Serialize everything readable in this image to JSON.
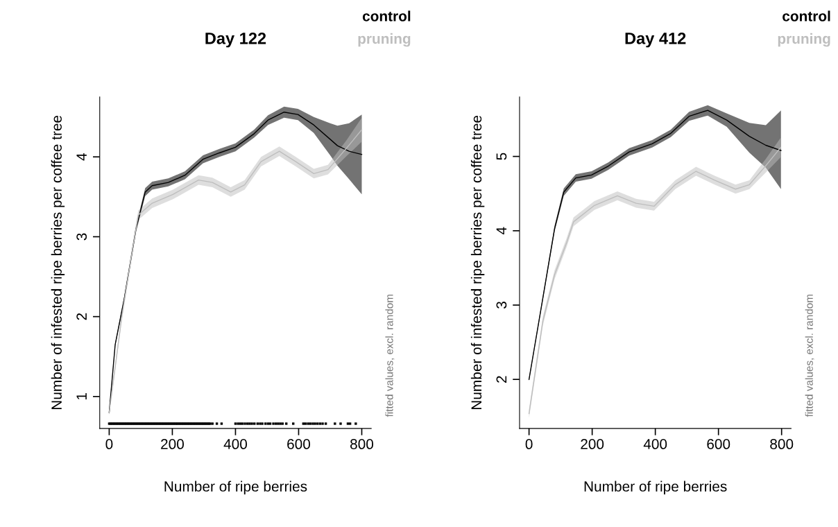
{
  "chart_data": [
    {
      "type": "line",
      "title": "Day 122",
      "xlabel": "Number of ripe berries",
      "ylabel": "Number of infested ripe berries per coffee tree",
      "annotations": [
        "fitted values, excl. random"
      ],
      "legend": "top right",
      "xlim": [
        -30,
        830
      ],
      "xticks": [
        0,
        200,
        400,
        600,
        800
      ],
      "ylim": [
        0.6,
        4.75
      ],
      "yticks": [
        1,
        2,
        3,
        4
      ],
      "grid": false,
      "series": [
        {
          "name": "control",
          "color": "#000000",
          "x": [
            0,
            19,
            48,
            85,
            114,
            136,
            187,
            240,
            297,
            349,
            400,
            459,
            503,
            554,
            598,
            648,
            700,
            723,
            760,
            800
          ],
          "values": [
            0.8,
            1.65,
            2.23,
            3.1,
            3.56,
            3.64,
            3.68,
            3.77,
            3.97,
            4.05,
            4.12,
            4.29,
            4.46,
            4.56,
            4.53,
            4.4,
            4.22,
            4.14,
            4.07,
            4.03
          ],
          "lower": [
            0.78,
            1.63,
            2.2,
            3.06,
            3.51,
            3.59,
            3.63,
            3.72,
            3.92,
            4.0,
            4.07,
            4.24,
            4.4,
            4.49,
            4.46,
            4.3,
            4.02,
            3.89,
            3.72,
            3.53
          ],
          "upper": [
            0.82,
            1.67,
            2.26,
            3.14,
            3.61,
            3.69,
            3.73,
            3.82,
            4.02,
            4.1,
            4.17,
            4.34,
            4.52,
            4.63,
            4.6,
            4.5,
            4.42,
            4.39,
            4.42,
            4.53
          ]
        },
        {
          "name": "pruning",
          "color": "#bebebe",
          "x": [
            0,
            40,
            70,
            92,
            136,
            202,
            283,
            327,
            385,
            429,
            481,
            539,
            591,
            648,
            693,
            752,
            800
          ],
          "values": [
            0.8,
            2.0,
            2.75,
            3.27,
            3.42,
            3.53,
            3.71,
            3.68,
            3.56,
            3.65,
            3.94,
            4.07,
            3.94,
            3.79,
            3.84,
            4.11,
            4.34
          ],
          "lower": [
            0.76,
            1.95,
            2.69,
            3.21,
            3.36,
            3.47,
            3.65,
            3.62,
            3.5,
            3.59,
            3.88,
            4.01,
            3.88,
            3.73,
            3.78,
            4.01,
            4.19
          ],
          "upper": [
            0.84,
            2.05,
            2.81,
            3.33,
            3.48,
            3.59,
            3.77,
            3.74,
            3.62,
            3.71,
            4.0,
            4.13,
            4.0,
            3.85,
            3.9,
            4.21,
            4.49
          ]
        },
        {
          "type": "scatter",
          "color": "#000000",
          "x": [
            0,
            4,
            8,
            12,
            16,
            20,
            24,
            28,
            32,
            36,
            40,
            44,
            48,
            52,
            56,
            60,
            64,
            68,
            72,
            76,
            80,
            84,
            88,
            92,
            96,
            100,
            104,
            108,
            112,
            116,
            120,
            124,
            128,
            132,
            136,
            140,
            144,
            148,
            152,
            156,
            160,
            164,
            168,
            172,
            176,
            180,
            184,
            188,
            192,
            196,
            200,
            204,
            208,
            212,
            216,
            220,
            224,
            228,
            232,
            236,
            240,
            244,
            248,
            252,
            256,
            260,
            264,
            268,
            272,
            276,
            280,
            284,
            288,
            292,
            296,
            300,
            304,
            308,
            312,
            316,
            320,
            327,
            341,
            356,
            400,
            408,
            415,
            422,
            430,
            438,
            445,
            452,
            460,
            470,
            478,
            485,
            495,
            503,
            510,
            520,
            528,
            535,
            542,
            549,
            561,
            583,
            615,
            622,
            630,
            637,
            645,
            652,
            660,
            668,
            676,
            686,
            715,
            733,
            756,
            763,
            781
          ],
          "values": [
            0.66,
            0.66,
            0.66,
            0.66,
            0.66,
            0.66,
            0.66,
            0.66,
            0.66,
            0.66,
            0.66,
            0.66,
            0.66,
            0.66,
            0.66,
            0.66,
            0.66,
            0.66,
            0.66,
            0.66,
            0.66,
            0.66,
            0.66,
            0.66,
            0.66,
            0.66,
            0.66,
            0.66,
            0.66,
            0.66,
            0.66,
            0.66,
            0.66,
            0.66,
            0.66,
            0.66,
            0.66,
            0.66,
            0.66,
            0.66,
            0.66,
            0.66,
            0.66,
            0.66,
            0.66,
            0.66,
            0.66,
            0.66,
            0.66,
            0.66,
            0.66,
            0.66,
            0.66,
            0.66,
            0.66,
            0.66,
            0.66,
            0.66,
            0.66,
            0.66,
            0.66,
            0.66,
            0.66,
            0.66,
            0.66,
            0.66,
            0.66,
            0.66,
            0.66,
            0.66,
            0.66,
            0.66,
            0.66,
            0.66,
            0.66,
            0.66,
            0.66,
            0.66,
            0.66,
            0.66,
            0.66,
            0.66,
            0.66,
            0.66,
            0.66,
            0.66,
            0.66,
            0.66,
            0.66,
            0.66,
            0.66,
            0.66,
            0.66,
            0.66,
            0.66,
            0.66,
            0.66,
            0.66,
            0.66,
            0.66,
            0.66,
            0.66,
            0.66,
            0.66,
            0.66,
            0.66,
            0.66,
            0.66,
            0.66,
            0.66,
            0.66,
            0.66,
            0.66,
            0.66,
            0.66,
            0.66,
            0.66,
            0.66,
            0.66,
            0.66,
            0.66
          ]
        }
      ]
    },
    {
      "type": "line",
      "title": "Day 412",
      "xlabel": "Number of ripe berries",
      "ylabel": "Number of infested ripe berries per coffee tree",
      "annotations": [
        "fitted values, excl. random"
      ],
      "legend": "top right",
      "xlim": [
        -30,
        830
      ],
      "xticks": [
        0,
        200,
        400,
        600,
        800
      ],
      "ylim": [
        1.34,
        5.8
      ],
      "yticks": [
        2,
        3,
        4,
        5
      ],
      "grid": false,
      "series": [
        {
          "name": "control",
          "color": "#000000",
          "x": [
            0,
            42,
            81,
            110,
            148,
            198,
            251,
            317,
            390,
            449,
            507,
            566,
            626,
            698,
            750,
            798
          ],
          "values": [
            2.0,
            3.05,
            4.03,
            4.52,
            4.71,
            4.75,
            4.87,
            5.06,
            5.17,
            5.31,
            5.54,
            5.62,
            5.49,
            5.27,
            5.15,
            5.08
          ],
          "lower": [
            1.98,
            3.02,
            3.99,
            4.47,
            4.66,
            4.7,
            4.82,
            5.01,
            5.12,
            5.26,
            5.48,
            5.55,
            5.4,
            5.05,
            4.85,
            4.56
          ],
          "upper": [
            2.02,
            3.08,
            4.07,
            4.57,
            4.76,
            4.8,
            4.92,
            5.11,
            5.22,
            5.36,
            5.6,
            5.69,
            5.58,
            5.45,
            5.42,
            5.62
          ]
        },
        {
          "name": "pruning",
          "color": "#bebebe",
          "x": [
            0,
            44,
            81,
            119,
            141,
            207,
            280,
            339,
            396,
            463,
            529,
            588,
            654,
            698,
            749,
            797
          ],
          "values": [
            1.54,
            2.79,
            3.41,
            3.84,
            4.12,
            4.34,
            4.47,
            4.37,
            4.33,
            4.62,
            4.8,
            4.68,
            4.56,
            4.62,
            4.87,
            5.12
          ],
          "lower": [
            1.48,
            2.73,
            3.35,
            3.78,
            4.06,
            4.28,
            4.41,
            4.31,
            4.27,
            4.56,
            4.74,
            4.62,
            4.5,
            4.56,
            4.78,
            4.99
          ],
          "upper": [
            1.6,
            2.85,
            3.47,
            3.9,
            4.18,
            4.4,
            4.53,
            4.43,
            4.39,
            4.68,
            4.86,
            4.74,
            4.62,
            4.68,
            4.96,
            5.25
          ]
        }
      ]
    }
  ]
}
